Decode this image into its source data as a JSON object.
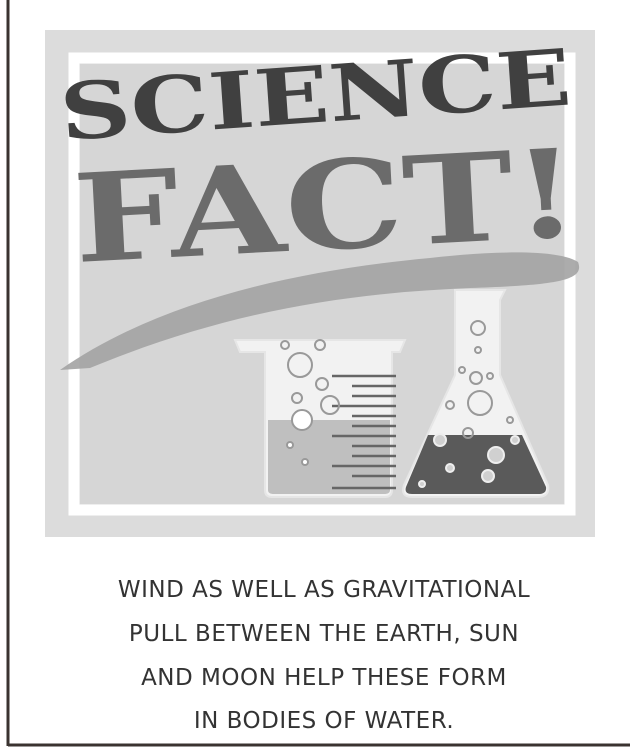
{
  "poster": {
    "headline": {
      "line1": "SCIENCE",
      "line2": "FACT!"
    },
    "caption": [
      "WIND AS WELL AS GRAVITATIONAL",
      "PULL BETWEEN THE EARTH, SUN",
      "AND MOON HELP THESE FORM",
      "IN BODIES OF WATER."
    ]
  }
}
